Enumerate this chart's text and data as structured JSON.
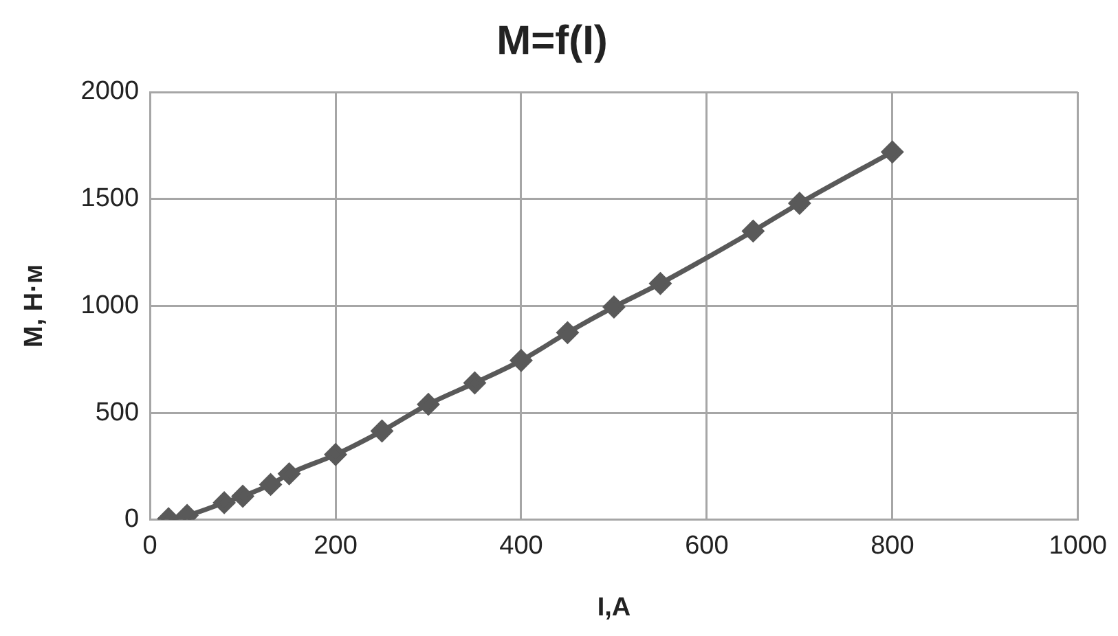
{
  "chart_data": {
    "type": "line",
    "title": "M=f(I)",
    "xlabel": "I,A",
    "ylabel": "M, Н·м",
    "x": [
      20,
      40,
      80,
      100,
      130,
      150,
      200,
      250,
      300,
      350,
      400,
      450,
      500,
      550,
      650,
      700,
      800
    ],
    "series": [
      {
        "color": "#595959",
        "values": [
          5,
          20,
          80,
          110,
          165,
          215,
          305,
          415,
          540,
          640,
          745,
          875,
          995,
          1105,
          1350,
          1480,
          1720
        ]
      }
    ],
    "xlim": [
      0,
      1000
    ],
    "xticks": [
      0,
      200,
      400,
      600,
      800,
      1000
    ],
    "ylim": [
      0,
      2000
    ],
    "yticks": [
      0,
      500,
      1000,
      1500,
      2000
    ],
    "grid": true,
    "legend": false,
    "marker": "diamond",
    "line_style": "solid"
  }
}
